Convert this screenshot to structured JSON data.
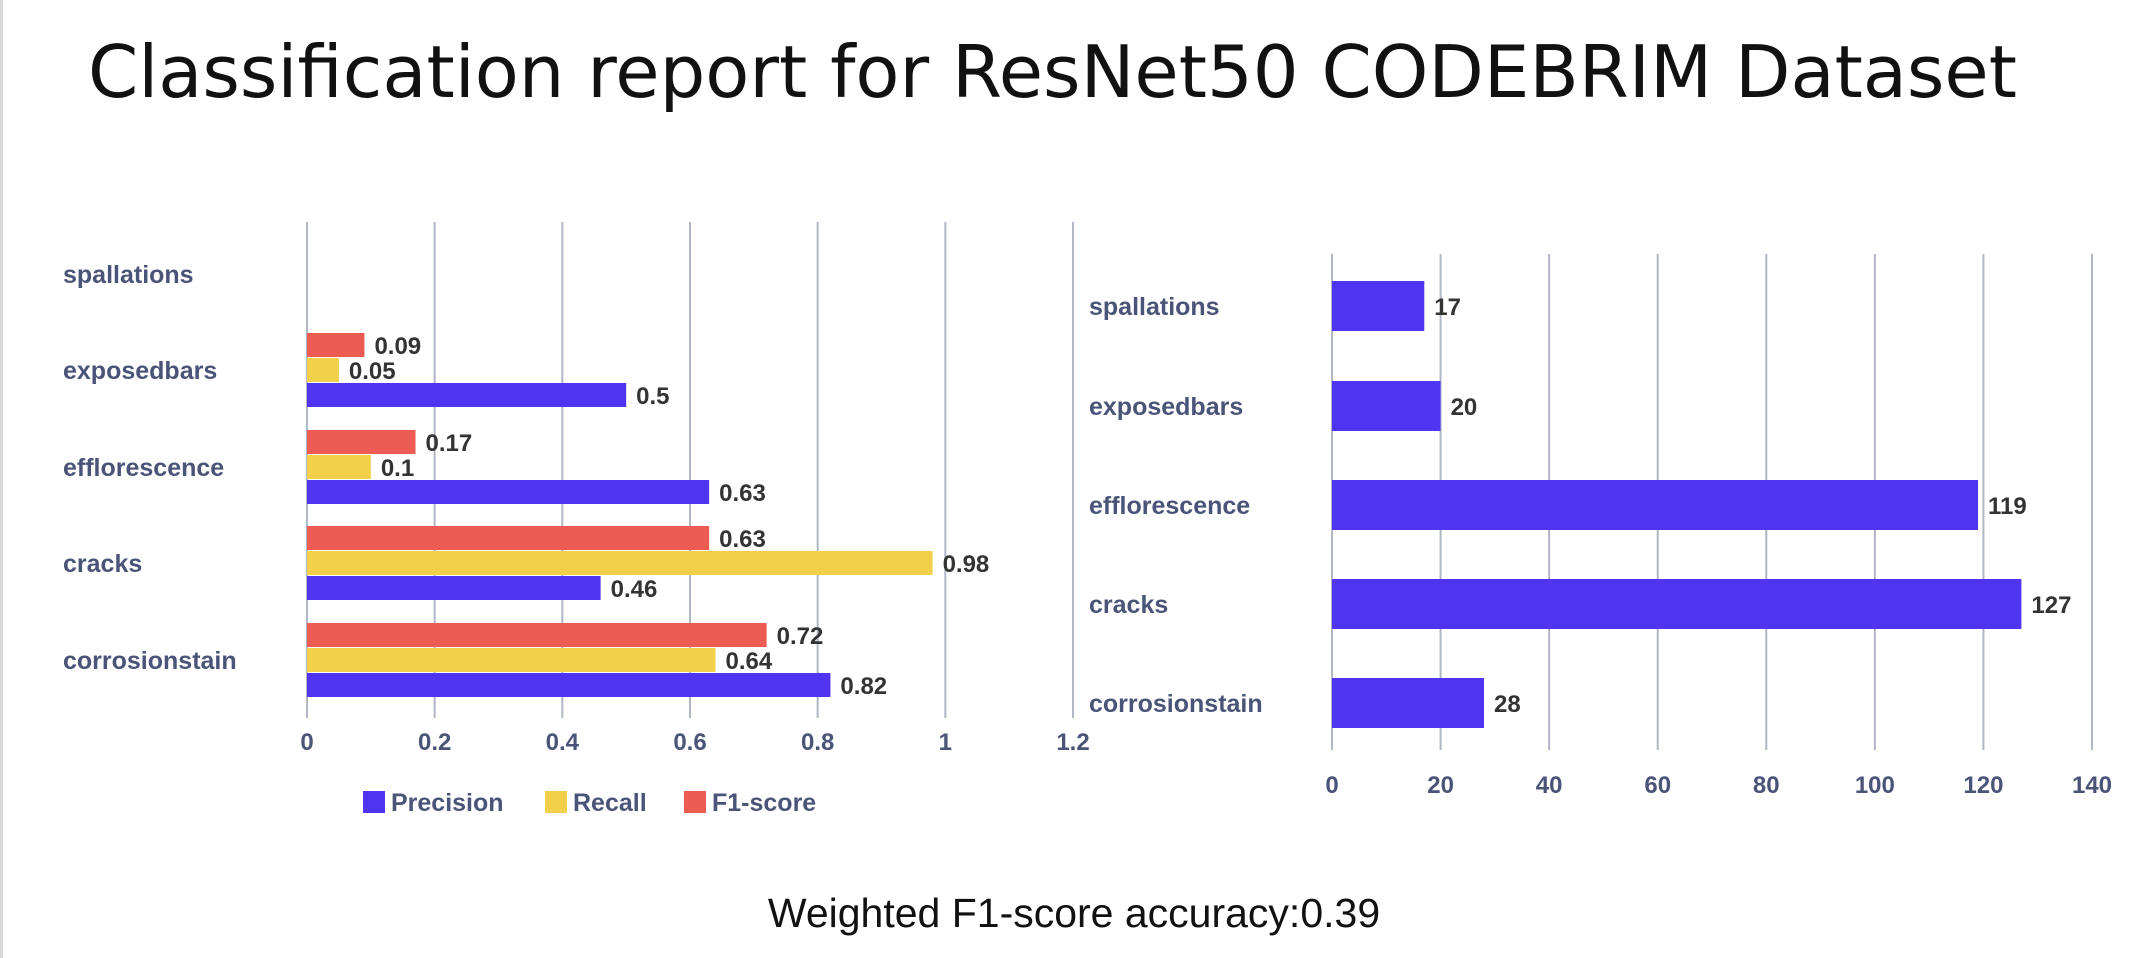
{
  "page": {
    "title": "Classification report for ResNet50 CODEBRIM Dataset",
    "footer": "Weighted F1-score accuracy:0.39"
  },
  "colors": {
    "precision": "#4f35f2",
    "recall": "#f2d04a",
    "f1": "#ec5c52",
    "support": "#4f35f2",
    "grid": "#b0b6c3",
    "category_text": "#4a5478",
    "label_text": "#333333"
  },
  "chart_data": [
    {
      "type": "bar",
      "orientation": "horizontal",
      "categories": [
        "spallations",
        "exposedbars",
        "efflorescence",
        "cracks",
        "corrosionstain"
      ],
      "series": [
        {
          "name": "Precision",
          "values": [
            null,
            0.5,
            0.63,
            0.46,
            0.82
          ]
        },
        {
          "name": "Recall",
          "values": [
            null,
            0.05,
            0.1,
            0.98,
            0.64
          ]
        },
        {
          "name": "F1-score",
          "values": [
            null,
            0.09,
            0.17,
            0.63,
            0.72
          ]
        }
      ],
      "xlim": [
        0,
        1.2
      ],
      "xticks": [
        "0",
        "0.2",
        "0.4",
        "0.6",
        "0.8",
        "1",
        "1.2"
      ],
      "grid": true,
      "legend": "bottom"
    },
    {
      "type": "bar",
      "orientation": "horizontal",
      "categories": [
        "spallations",
        "exposedbars",
        "efflorescence",
        "cracks",
        "corrosionstain"
      ],
      "values": [
        17,
        20,
        119,
        127,
        28
      ],
      "xlim": [
        0,
        140
      ],
      "xticks": [
        "0",
        "20",
        "40",
        "60",
        "80",
        "100",
        "120",
        "140"
      ],
      "grid": true
    }
  ]
}
